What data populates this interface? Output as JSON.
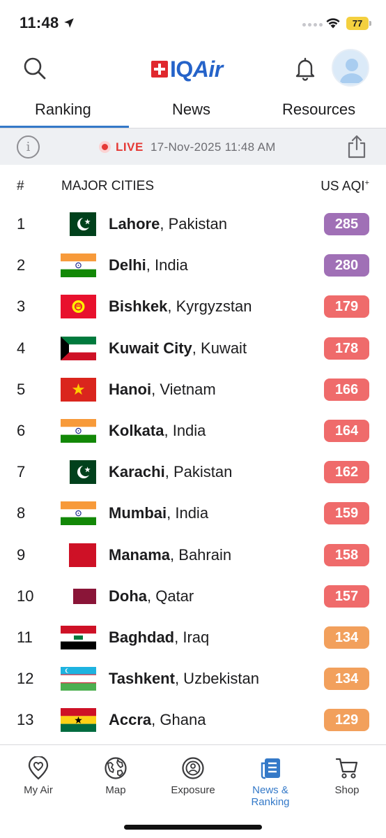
{
  "status_bar": {
    "time": "11:48",
    "battery": "77"
  },
  "header": {
    "logo_text_a": "IQ",
    "logo_text_b": "Air"
  },
  "tabs": [
    {
      "label": "Ranking",
      "active": true
    },
    {
      "label": "News",
      "active": false
    },
    {
      "label": "Resources",
      "active": false
    }
  ],
  "live_bar": {
    "live_label": "LIVE",
    "timestamp": "17-Nov-2025 11:48 AM"
  },
  "table": {
    "col_rank": "#",
    "col_city": "MAJOR CITIES",
    "col_aqi": "US AQI",
    "col_aqi_sup": "+",
    "rows": [
      {
        "rank": "1",
        "city": "Lahore",
        "country": ", Pakistan",
        "aqi": "285",
        "flag": "pakistan",
        "color": "#a070b6"
      },
      {
        "rank": "2",
        "city": "Delhi",
        "country": ", India",
        "aqi": "280",
        "flag": "india",
        "color": "#a070b6"
      },
      {
        "rank": "3",
        "city": "Bishkek",
        "country": ", Kyrgyzstan",
        "aqi": "179",
        "flag": "kyrgyzstan",
        "color": "#ef6b6b"
      },
      {
        "rank": "4",
        "city": "Kuwait City",
        "country": ", Kuwait",
        "aqi": "178",
        "flag": "kuwait",
        "color": "#ef6b6b"
      },
      {
        "rank": "5",
        "city": "Hanoi",
        "country": ", Vietnam",
        "aqi": "166",
        "flag": "vietnam",
        "color": "#ef6b6b"
      },
      {
        "rank": "6",
        "city": "Kolkata",
        "country": ", India",
        "aqi": "164",
        "flag": "india",
        "color": "#ef6b6b"
      },
      {
        "rank": "7",
        "city": "Karachi",
        "country": ", Pakistan",
        "aqi": "162",
        "flag": "pakistan",
        "color": "#ef6b6b"
      },
      {
        "rank": "8",
        "city": "Mumbai",
        "country": ", India",
        "aqi": "159",
        "flag": "india",
        "color": "#ef6b6b"
      },
      {
        "rank": "9",
        "city": "Manama",
        "country": ", Bahrain",
        "aqi": "158",
        "flag": "bahrain",
        "color": "#ef6b6b"
      },
      {
        "rank": "10",
        "city": "Doha",
        "country": ", Qatar",
        "aqi": "157",
        "flag": "qatar",
        "color": "#ef6b6b"
      },
      {
        "rank": "11",
        "city": "Baghdad",
        "country": ", Iraq",
        "aqi": "134",
        "flag": "iraq",
        "color": "#f2a05c"
      },
      {
        "rank": "12",
        "city": "Tashkent",
        "country": ", Uzbekistan",
        "aqi": "134",
        "flag": "uzbekistan",
        "color": "#f2a05c"
      },
      {
        "rank": "13",
        "city": "Accra",
        "country": ", Ghana",
        "aqi": "129",
        "flag": "ghana",
        "color": "#f2a05c"
      }
    ]
  },
  "bottom_nav": [
    {
      "label": "My Air",
      "icon": "heart-pin-icon",
      "active": false
    },
    {
      "label": "Map",
      "icon": "globe-icon",
      "active": false
    },
    {
      "label": "Exposure",
      "icon": "exposure-icon",
      "active": false
    },
    {
      "label": "News & Ranking",
      "icon": "news-icon",
      "active": true
    },
    {
      "label": "Shop",
      "icon": "cart-icon",
      "active": false
    }
  ]
}
